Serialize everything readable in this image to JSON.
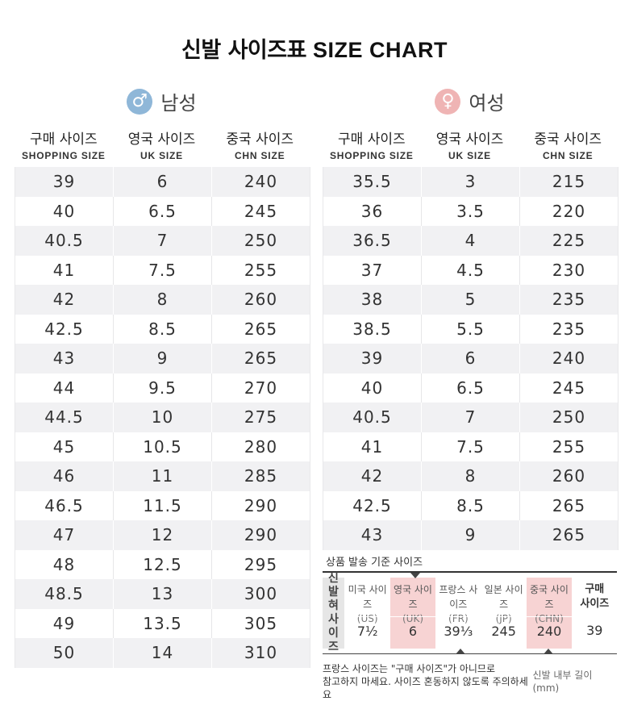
{
  "title": {
    "ko": "신발 사이즈표",
    "en": "SIZE CHART"
  },
  "columns": [
    {
      "ko": "구매 사이즈",
      "en": "SHOPPING SIZE"
    },
    {
      "ko": "영국 사이즈",
      "en": "UK SIZE"
    },
    {
      "ko": "중국 사이즈",
      "en": "CHN SIZE"
    }
  ],
  "men": {
    "label": "남성",
    "icon": "male-symbol-icon",
    "icon_color": "#8fb7d8",
    "rows": [
      [
        "39",
        "6",
        "240"
      ],
      [
        "40",
        "6.5",
        "245"
      ],
      [
        "40.5",
        "7",
        "250"
      ],
      [
        "41",
        "7.5",
        "255"
      ],
      [
        "42",
        "8",
        "260"
      ],
      [
        "42.5",
        "8.5",
        "265"
      ],
      [
        "43",
        "9",
        "265"
      ],
      [
        "44",
        "9.5",
        "270"
      ],
      [
        "44.5",
        "10",
        "275"
      ],
      [
        "45",
        "10.5",
        "280"
      ],
      [
        "46",
        "11",
        "285"
      ],
      [
        "46.5",
        "11.5",
        "290"
      ],
      [
        "47",
        "12",
        "290"
      ],
      [
        "48",
        "12.5",
        "295"
      ],
      [
        "48.5",
        "13",
        "300"
      ],
      [
        "49",
        "13.5",
        "305"
      ],
      [
        "50",
        "14",
        "310"
      ]
    ]
  },
  "women": {
    "label": "여성",
    "icon": "female-symbol-icon",
    "icon_color": "#efb4b4",
    "rows": [
      [
        "35.5",
        "3",
        "215"
      ],
      [
        "36",
        "3.5",
        "220"
      ],
      [
        "36.5",
        "4",
        "225"
      ],
      [
        "37",
        "4.5",
        "230"
      ],
      [
        "38",
        "5",
        "235"
      ],
      [
        "38.5",
        "5.5",
        "235"
      ],
      [
        "39",
        "6",
        "240"
      ],
      [
        "40",
        "6.5",
        "245"
      ],
      [
        "40.5",
        "7",
        "250"
      ],
      [
        "41",
        "7.5",
        "255"
      ],
      [
        "42",
        "8",
        "260"
      ],
      [
        "42.5",
        "8.5",
        "265"
      ],
      [
        "43",
        "9",
        "265"
      ]
    ]
  },
  "shipping": {
    "title": "상품 발송 기준 사이즈",
    "side_label": [
      "신",
      "발",
      "혀",
      "사",
      "이",
      "즈"
    ],
    "columns": [
      {
        "name": "미국 사이즈",
        "code": "(US)",
        "value": "7½",
        "highlight": false
      },
      {
        "name": "영국 사이즈",
        "code": "(UK)",
        "value": "6",
        "highlight": true
      },
      {
        "name": "프랑스 사이즈",
        "code": "(FR)",
        "value": "39⅓",
        "highlight": false
      },
      {
        "name": "일본 사이즈",
        "code": "(JP)",
        "value": "245",
        "highlight": false
      },
      {
        "name": "중국 사이즈",
        "code": "(CHN)",
        "value": "240",
        "highlight": true
      },
      {
        "name": "구매",
        "code": "사이즈",
        "value": "39",
        "highlight": false
      }
    ],
    "note_line1": "프랑스 사이즈는 \"구매 사이즈\"가 아니므로",
    "note_line2": "참고하지 마세요. 사이즈 혼동하지 않도록 주의하세요",
    "unit": "신발 내부 길이(mm)",
    "highlight_color": "#f7d3d3"
  }
}
